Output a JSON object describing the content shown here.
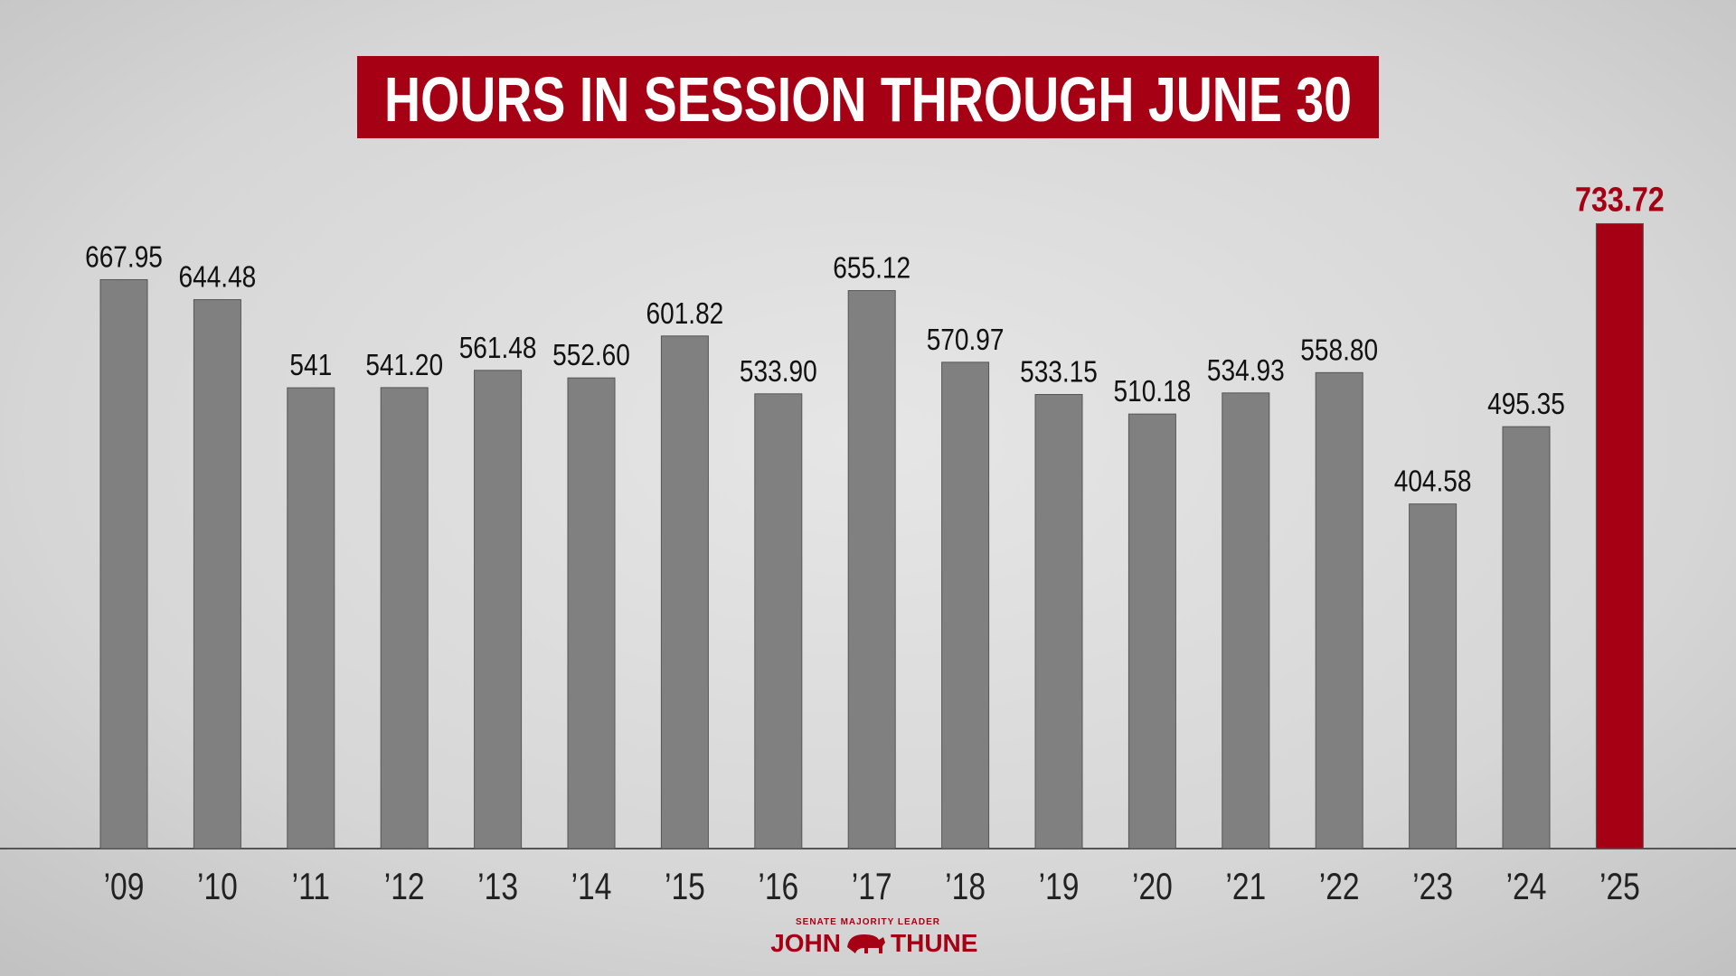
{
  "chart_data": {
    "type": "bar",
    "title": "HOURS IN SESSION THROUGH JUNE 30",
    "categories": [
      "’09",
      "’10",
      "’11",
      "’12",
      "’13",
      "’14",
      "’15",
      "’16",
      "’17",
      "’18",
      "’19",
      "’20",
      "’21",
      "’22",
      "’23",
      "’24",
      "’25"
    ],
    "values": [
      667.95,
      644.48,
      541,
      541.2,
      561.48,
      552.6,
      601.82,
      533.9,
      655.12,
      570.97,
      533.15,
      510.18,
      534.93,
      558.8,
      404.58,
      495.35,
      733.72
    ],
    "value_labels": [
      "667.95",
      "644.48",
      "541",
      "541.20",
      "561.48",
      "552.60",
      "601.82",
      "533.90",
      "655.12",
      "570.97",
      "533.15",
      "510.18",
      "534.93",
      "558.80",
      "404.58",
      "495.35",
      "733.72"
    ],
    "color": "#808080",
    "colors": [
      "#808080",
      "#808080",
      "#808080",
      "#808080",
      "#808080",
      "#808080",
      "#808080",
      "#808080",
      "#808080",
      "#808080",
      "#808080",
      "#808080",
      "#808080",
      "#808080",
      "#808080",
      "#808080",
      "#a50014"
    ]
  },
  "footer": {
    "kicker": "SENATE MAJORITY LEADER",
    "name_left": "JOHN",
    "name_right": "THUNE"
  }
}
